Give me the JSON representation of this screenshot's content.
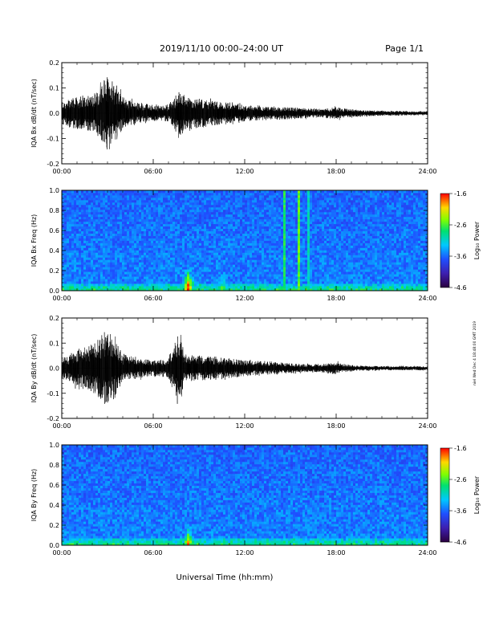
{
  "header": {
    "title": "2019/11/10  00:00–24:00 UT",
    "page": "Page 1/1"
  },
  "footer": {
    "xaxis_label": "Universal Time (hh:mm)"
  },
  "side_text": "niel Wed Dec 4 18:48:00 GMT 2019",
  "colorbar": {
    "label": "Log₁₀ Power",
    "ticks": [
      "-1.6",
      "-2.6",
      "-3.6",
      "-4.6"
    ]
  },
  "chart_data": [
    {
      "type": "line",
      "ylabel": "IQA Bx dB/dt (nT/sec)",
      "ylim": [
        -0.2,
        0.2
      ],
      "yticks": [
        "0.2",
        "0.1",
        "0.0",
        "-0.1",
        "-0.2"
      ],
      "xticks": [
        "00:00",
        "06:00",
        "12:00",
        "18:00",
        "24:00"
      ],
      "x": [
        0,
        1,
        2,
        2.5,
        3,
        3.5,
        4,
        5,
        6,
        7,
        7.8,
        8,
        9,
        10,
        11,
        12,
        13,
        14,
        15,
        16,
        17,
        18,
        19,
        20,
        21,
        22,
        23,
        24
      ],
      "y_envelope": [
        0.06,
        0.08,
        0.09,
        0.12,
        0.2,
        0.15,
        0.08,
        0.05,
        0.04,
        0.04,
        0.12,
        0.09,
        0.07,
        0.06,
        0.05,
        0.04,
        0.035,
        0.03,
        0.03,
        0.025,
        0.02,
        0.03,
        0.02,
        0.015,
        0.012,
        0.012,
        0.01,
        0.01
      ]
    },
    {
      "type": "heatmap",
      "ylabel": "IQA Bx Freq (Hz)",
      "ylim": [
        0,
        1.0
      ],
      "yticks": [
        "1.0",
        "0.8",
        "0.6",
        "0.4",
        "0.2",
        "0.0"
      ],
      "xticks": [
        "00:00",
        "06:00",
        "12:00",
        "18:00",
        "24:00"
      ],
      "zlim": [
        -4.6,
        -1.6
      ],
      "features": [
        {
          "t": 8.3,
          "fmax": 0.3,
          "level": -1.8
        },
        {
          "t": 10.5,
          "fmax": 0.25,
          "level": -2.6
        },
        {
          "t": 14.6,
          "fmax": 1.0,
          "level": -2.6,
          "line": true
        },
        {
          "t": 15.5,
          "fmax": 1.0,
          "level": -2.4,
          "line": true
        },
        {
          "t": 16.2,
          "fmax": 1.0,
          "level": -2.9,
          "line": true
        }
      ]
    },
    {
      "type": "line",
      "ylabel": "IQA By dB/dt (nT/sec)",
      "ylim": [
        -0.2,
        0.2
      ],
      "yticks": [
        "0.2",
        "0.1",
        "0.0",
        "-0.1",
        "-0.2"
      ],
      "xticks": [
        "00:00",
        "06:00",
        "12:00",
        "18:00",
        "24:00"
      ],
      "x": [
        0,
        1,
        2,
        2.5,
        3,
        3.5,
        4,
        5,
        6,
        7,
        7.8,
        8,
        9,
        10,
        11,
        12,
        13,
        14,
        15,
        16,
        17,
        18,
        19,
        20,
        21,
        22,
        23,
        24
      ],
      "y_envelope": [
        0.05,
        0.09,
        0.12,
        0.15,
        0.2,
        0.14,
        0.07,
        0.05,
        0.04,
        0.05,
        0.2,
        0.07,
        0.06,
        0.06,
        0.05,
        0.04,
        0.035,
        0.03,
        0.025,
        0.02,
        0.02,
        0.03,
        0.015,
        0.012,
        0.01,
        0.01,
        0.01,
        0.01
      ]
    },
    {
      "type": "heatmap",
      "ylabel": "IQA By Freq (Hz)",
      "ylim": [
        0,
        1.0
      ],
      "yticks": [
        "1.0",
        "0.8",
        "0.6",
        "0.4",
        "0.2",
        "0.0"
      ],
      "xticks": [
        "00:00",
        "06:00",
        "12:00",
        "18:00",
        "24:00"
      ],
      "zlim": [
        -4.6,
        -1.6
      ],
      "features": [
        {
          "t": 8.3,
          "fmax": 0.25,
          "level": -2.0
        },
        {
          "t": 3.0,
          "fmax": 0.15,
          "level": -2.6
        }
      ]
    }
  ]
}
